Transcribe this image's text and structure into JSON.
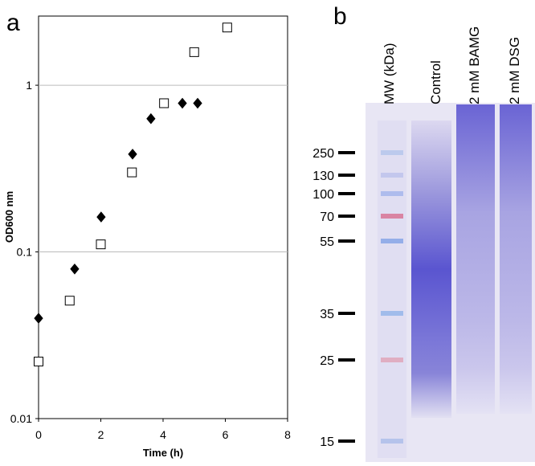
{
  "chart_data": {
    "type": "scatter",
    "panel_label": "a",
    "xlabel": "Time (h)",
    "ylabel": "OD600 nm",
    "xlim": [
      0,
      8
    ],
    "xticks": [
      0,
      2,
      4,
      6,
      8
    ],
    "ylim": [
      0.01,
      2.6
    ],
    "yticks": [
      0.01,
      0.1,
      1
    ],
    "yscale": "log",
    "grid": true,
    "series": [
      {
        "color": "#000000",
        "marker": "diamond",
        "filled": true,
        "x": [
          0,
          1.16,
          2.01,
          3.02,
          3.61,
          4.62,
          5.11
        ],
        "values": [
          0.04,
          0.079,
          0.162,
          0.386,
          0.63,
          0.78,
          0.78
        ]
      },
      {
        "color": "#000000",
        "marker": "square",
        "filled": false,
        "x": [
          0,
          1,
          2,
          3,
          4.03,
          5,
          6.06
        ],
        "values": [
          0.022,
          0.051,
          0.111,
          0.3,
          0.78,
          1.58,
          2.22
        ]
      }
    ]
  },
  "gel": {
    "panel_label": "b",
    "lanes": [
      "MW (kDa)",
      "Control",
      "2 mM BAMG",
      "2 mM DSG"
    ],
    "markers": [
      "250",
      "130",
      "100",
      "70",
      "55",
      "35",
      "25",
      "15"
    ]
  }
}
